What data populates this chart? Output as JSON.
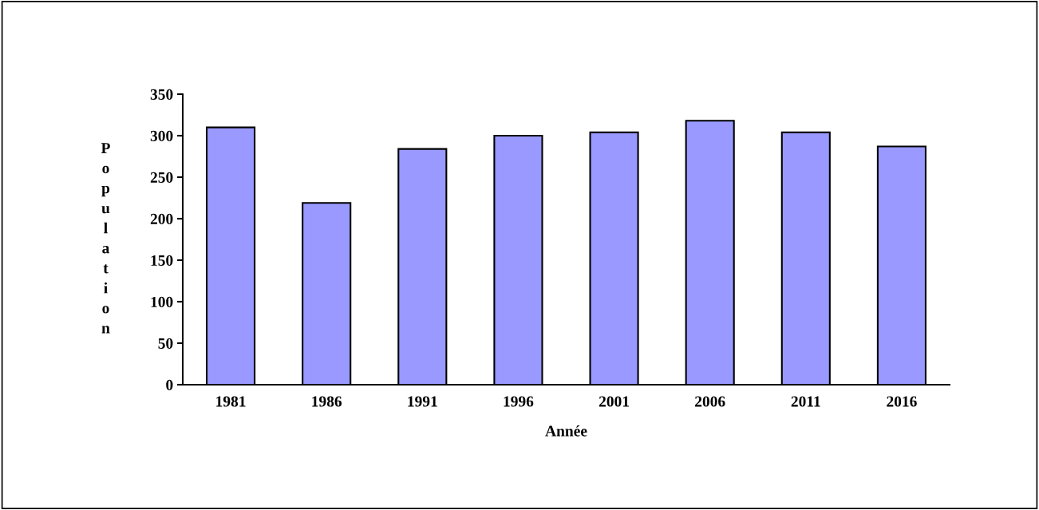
{
  "chart_data": {
    "type": "bar",
    "xlabel": "Année",
    "ylabel": "Population",
    "categories": [
      "1981",
      "1986",
      "1991",
      "1996",
      "2001",
      "2006",
      "2011",
      "2016"
    ],
    "values": [
      310,
      219,
      284,
      300,
      304,
      318,
      304,
      287
    ],
    "color": "#9999ff",
    "ylim": [
      0,
      350
    ],
    "yticks": [
      0,
      50,
      100,
      150,
      200,
      250,
      300,
      350
    ],
    "grid": false
  }
}
